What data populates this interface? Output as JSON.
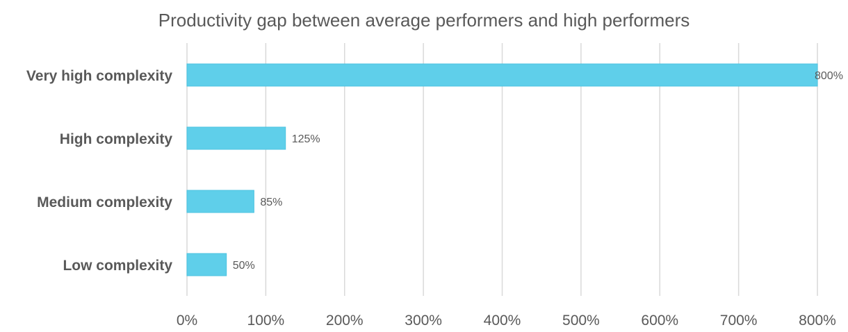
{
  "chart_data": {
    "type": "bar",
    "orientation": "horizontal",
    "title": "Productivity gap between average performers and high performers",
    "xlabel": "",
    "ylabel": "",
    "categories": [
      "Very high complexity",
      "High complexity",
      "Medium complexity",
      "Low complexity"
    ],
    "values": [
      800,
      125,
      85,
      50
    ],
    "data_labels": [
      "800%",
      "125%",
      "85%",
      "50%"
    ],
    "xlim": [
      0,
      800
    ],
    "xticks": [
      0,
      100,
      200,
      300,
      400,
      500,
      600,
      700,
      800
    ],
    "xtick_labels": [
      "0%",
      "100%",
      "200%",
      "300%",
      "400%",
      "500%",
      "600%",
      "700%",
      "800%"
    ],
    "grid": "vertical",
    "legend": "none",
    "bar_color": "#5fcfea"
  }
}
